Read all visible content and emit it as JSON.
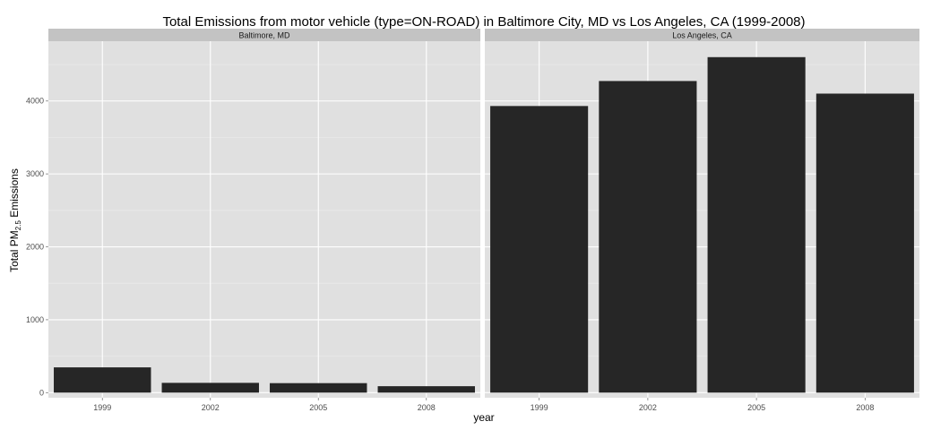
{
  "chart_data": {
    "type": "bar",
    "title": "Total Emissions from motor vehicle (type=ON-ROAD) in Baltimore City, MD  vs Los Angeles, CA (1999-2008)",
    "xlabel": "year",
    "ylabel": {
      "prefix": "Total PM",
      "subscript": "2.5",
      "suffix": " Emissions"
    },
    "categories": [
      "1999",
      "2002",
      "2005",
      "2008"
    ],
    "ylim": [
      -70,
      4820
    ],
    "yticks": [
      0,
      1000,
      2000,
      3000,
      4000
    ],
    "grid": true,
    "bar_color": "#262626",
    "panel_color": "#e0e0e0",
    "strip_color": "#c3c3c3",
    "facets": [
      {
        "name": "Baltimore, MD",
        "values": [
          346.8,
          134.3,
          130.4,
          88.3
        ]
      },
      {
        "name": "Los Angeles, CA",
        "values": [
          3931.1,
          4274.0,
          4601.4,
          4101.3
        ]
      }
    ]
  }
}
